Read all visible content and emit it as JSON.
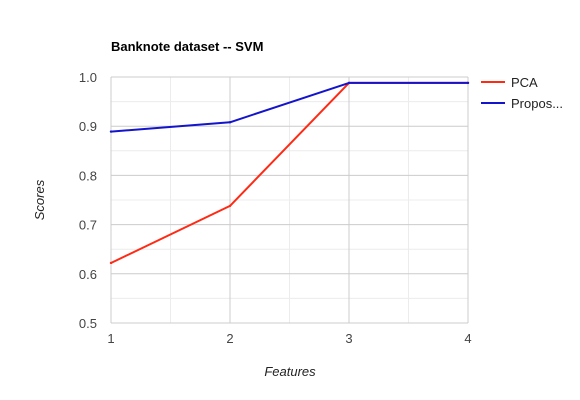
{
  "chart_data": {
    "type": "line",
    "title": "Banknote dataset -- SVM",
    "xlabel": "Features",
    "ylabel": "Scores",
    "x": [
      1,
      2,
      3,
      4
    ],
    "x_ticks": [
      "1",
      "2",
      "3",
      "4"
    ],
    "y_ticks": [
      "0.5",
      "0.6",
      "0.7",
      "0.8",
      "0.9",
      "1.0"
    ],
    "xlim": [
      1,
      4
    ],
    "ylim": [
      0.5,
      1.0
    ],
    "grid": true,
    "minor_grid": true,
    "legend_position": "right",
    "series": [
      {
        "name": "PCA",
        "color": "#ff2a14",
        "values": [
          0.622,
          0.738,
          0.988,
          0.988
        ]
      },
      {
        "name": "Propos...",
        "color": "#1414cc",
        "values": [
          0.889,
          0.908,
          0.988,
          0.988
        ]
      }
    ]
  }
}
